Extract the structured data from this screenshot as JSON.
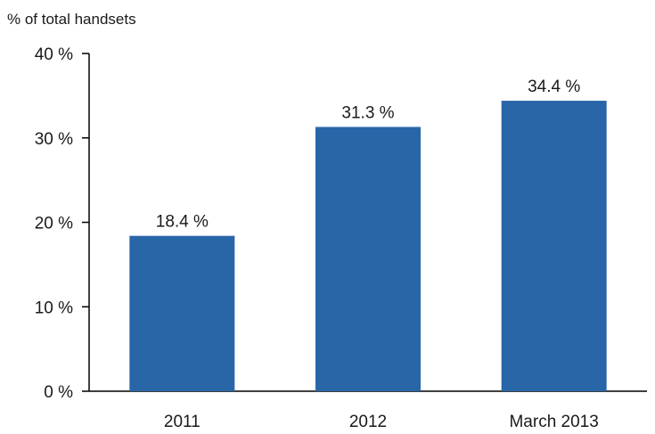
{
  "chart_data": {
    "type": "bar",
    "ylabel": "% of total handsets",
    "categories": [
      "2011",
      "2012",
      "March 2013"
    ],
    "values": [
      18.4,
      31.3,
      34.4
    ],
    "data_labels": [
      "18.4 %",
      "31.3 %",
      "34.4 %"
    ],
    "ylim": [
      0,
      40
    ],
    "yticks": [
      {
        "value": 0,
        "label": "0 %"
      },
      {
        "value": 10,
        "label": "10 %"
      },
      {
        "value": 20,
        "label": "20 %"
      },
      {
        "value": 30,
        "label": "30 %"
      },
      {
        "value": 40,
        "label": "40 %"
      }
    ],
    "bar_color": "#2966A8",
    "grid": false,
    "legend": "none"
  }
}
